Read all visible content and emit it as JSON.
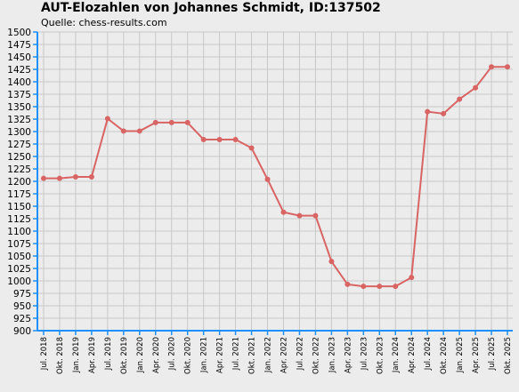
{
  "chart_data": {
    "type": "line",
    "title": "AUT-Elozahlen von Johannes Schmidt, ID:137502",
    "subtitle": "Quelle: chess-results.com",
    "xlabel": "",
    "ylabel": "",
    "ylim": [
      900,
      1500
    ],
    "ytick_step": 25,
    "grid": true,
    "legend": "none",
    "categories": [
      "Jul. 2018",
      "Okt. 2018",
      "Jan. 2019",
      "Apr. 2019",
      "Jul. 2019",
      "Okt. 2019",
      "Jan. 2020",
      "Apr. 2020",
      "Jul. 2020",
      "Okt. 2020",
      "Jan. 2021",
      "Apr. 2021",
      "Jul. 2021",
      "Okt. 2021",
      "Jan. 2022",
      "Apr. 2022",
      "Jul. 2022",
      "Okt. 2022",
      "Jan. 2023",
      "Apr. 2023",
      "Jul. 2023",
      "Okt. 2023",
      "Jan. 2024",
      "Apr. 2024",
      "Jul. 2024",
      "Okt. 2024",
      "Jan. 2025",
      "Apr. 2025",
      "Jul. 2025",
      "Okt. 2025"
    ],
    "series": [
      {
        "values": [
          1206,
          1206,
          1209,
          1209,
          1326,
          1301,
          1301,
          1318,
          1318,
          1318,
          1284,
          1284,
          1284,
          1267,
          1204,
          1138,
          1131,
          1131,
          1039,
          993,
          989,
          989,
          989,
          1007,
          1340,
          1336,
          1365,
          1388,
          1430,
          1430
        ]
      }
    ],
    "colors": {
      "background": "#ececec",
      "plot_background": "#ececec",
      "grid": "#c8c8c8",
      "axis": "#1e90ff",
      "line": "#d96464"
    }
  }
}
